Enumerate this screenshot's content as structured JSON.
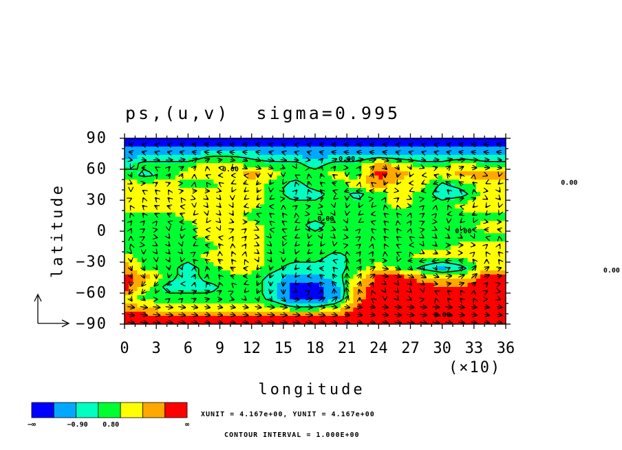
{
  "chart_data": {
    "type": "heatmap",
    "title": "ps,(u,v)  sigma=0.995",
    "xlabel": "longitude",
    "ylabel": "latitude",
    "x_scale_note": "(×10)",
    "xlim": [
      0,
      36
    ],
    "ylim": [
      -90,
      90
    ],
    "x_ticks": [
      "0",
      "3",
      "6",
      "9",
      "12",
      "15",
      "18",
      "21",
      "24",
      "27",
      "30",
      "33",
      "36"
    ],
    "y_ticks": [
      "90",
      "60",
      "30",
      "0",
      "−30",
      "−60",
      "−90"
    ],
    "y_tick_values": [
      90,
      60,
      30,
      0,
      -30,
      -60,
      -90
    ],
    "contour_label": "0.00",
    "colorbar": {
      "colors": [
        "#0000ff",
        "#00a8ff",
        "#00ffc0",
        "#00ff30",
        "#ffff00",
        "#ffa800",
        "#ff0000"
      ],
      "labels": [
        "−∞",
        "−0.90",
        "0.80",
        "∞"
      ]
    },
    "field_levels": {
      "comment_free": true,
      "lat": [
        85,
        75,
        65,
        55,
        45,
        35,
        25,
        15,
        5,
        -5,
        -15,
        -25,
        -35,
        -45,
        -55,
        -65,
        -75,
        -85
      ],
      "lon": [
        0,
        20,
        40,
        60,
        80,
        100,
        120,
        140,
        160,
        180,
        200,
        220,
        240,
        260,
        280,
        300,
        320,
        340
      ],
      "rows": [
        [
          0,
          0,
          0,
          0,
          0,
          0,
          0,
          0,
          0,
          0,
          0,
          0,
          0,
          0,
          0,
          0,
          0,
          0
        ],
        [
          1,
          1,
          1,
          1,
          2,
          2,
          2,
          1,
          1,
          1,
          1,
          1,
          1,
          1,
          1,
          1,
          1,
          1
        ],
        [
          2,
          3,
          3,
          3,
          4,
          4,
          3,
          3,
          3,
          2,
          3,
          3,
          5,
          4,
          3,
          3,
          4,
          3
        ],
        [
          3,
          2,
          3,
          4,
          4,
          4,
          5,
          4,
          3,
          3,
          4,
          3,
          6,
          5,
          4,
          4,
          5,
          5
        ],
        [
          4,
          4,
          4,
          3,
          3,
          4,
          4,
          3,
          2,
          3,
          3,
          4,
          5,
          4,
          4,
          2,
          3,
          4
        ],
        [
          4,
          4,
          4,
          4,
          4,
          4,
          4,
          3,
          2,
          2,
          3,
          2,
          3,
          4,
          3,
          2,
          2,
          4
        ],
        [
          4,
          4,
          4,
          4,
          4,
          4,
          4,
          3,
          3,
          3,
          3,
          3,
          3,
          4,
          3,
          3,
          4,
          4
        ],
        [
          3,
          3,
          3,
          4,
          4,
          4,
          3,
          3,
          3,
          3,
          3,
          3,
          3,
          3,
          3,
          3,
          3,
          3
        ],
        [
          3,
          3,
          3,
          3,
          4,
          4,
          4,
          3,
          3,
          2,
          3,
          3,
          3,
          3,
          3,
          3,
          3,
          4
        ],
        [
          3,
          3,
          3,
          3,
          4,
          4,
          4,
          3,
          3,
          3,
          3,
          3,
          3,
          3,
          3,
          3,
          3,
          3
        ],
        [
          3,
          3,
          3,
          3,
          3,
          4,
          4,
          3,
          3,
          3,
          3,
          3,
          3,
          3,
          3,
          3,
          4,
          4
        ],
        [
          4,
          3,
          3,
          3,
          4,
          4,
          4,
          3,
          3,
          3,
          2,
          3,
          3,
          3,
          4,
          4,
          4,
          4
        ],
        [
          5,
          3,
          3,
          2,
          3,
          4,
          4,
          3,
          2,
          2,
          2,
          3,
          4,
          3,
          2,
          1,
          2,
          4
        ],
        [
          6,
          5,
          3,
          2,
          3,
          3,
          3,
          2,
          1,
          1,
          2,
          4,
          6,
          6,
          5,
          4,
          4,
          6
        ],
        [
          6,
          4,
          2,
          2,
          2,
          3,
          3,
          2,
          0,
          0,
          1,
          5,
          6,
          6,
          6,
          6,
          6,
          6
        ],
        [
          4,
          3,
          3,
          3,
          3,
          3,
          3,
          2,
          0,
          0,
          1,
          5,
          6,
          6,
          6,
          6,
          6,
          6
        ],
        [
          5,
          5,
          4,
          4,
          4,
          4,
          4,
          4,
          3,
          3,
          4,
          6,
          6,
          6,
          6,
          6,
          6,
          6
        ],
        [
          6,
          6,
          6,
          6,
          6,
          6,
          6,
          6,
          6,
          6,
          6,
          6,
          6,
          6,
          6,
          6,
          6,
          6
        ]
      ]
    }
  },
  "annotations": {
    "units": "XUNIT = 4.167e+00, YUNIT = 4.167e+00",
    "contour_interval": "CONTOUR INTERVAL = 1.000E+00"
  }
}
